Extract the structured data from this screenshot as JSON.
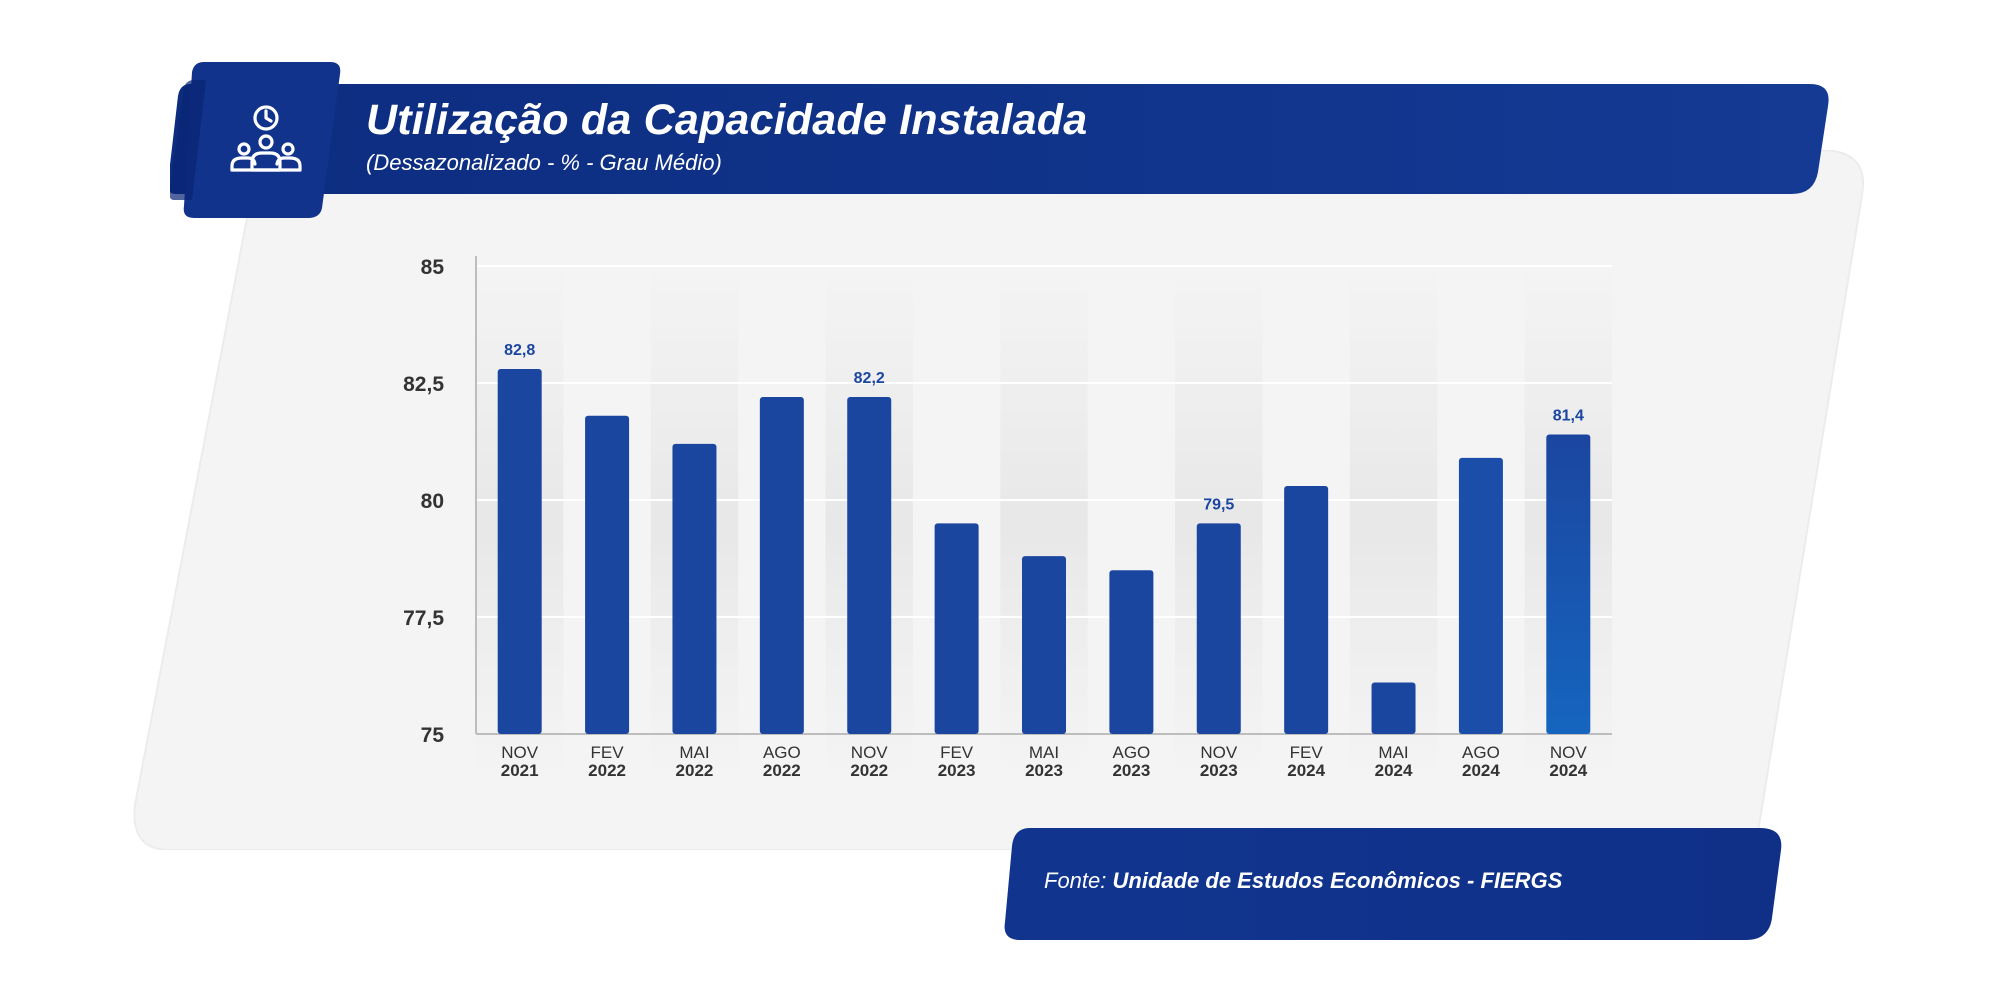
{
  "header": {
    "title": "Utilização da Capacidade Instalada",
    "subtitle": "(Dessazonalizado - % - Grau Médio)",
    "icon": "people-clock-icon"
  },
  "footer": {
    "source_prefix": "Fonte:",
    "source_name": "Unidade de Estudos Econômicos - FIERGS"
  },
  "colors": {
    "banner_dark": "#0e2d86",
    "bar": "#1b46a0",
    "bar_last": "#1565bf",
    "label": "#1b46a0",
    "axis_text": "#333333"
  },
  "chart_data": {
    "type": "bar",
    "title": "Utilização da Capacidade Instalada",
    "subtitle": "(Dessazonalizado - % - Grau Médio)",
    "xlabel": "",
    "ylabel": "",
    "ylim": [
      75,
      85
    ],
    "yticks": [
      {
        "value": 75,
        "label": "75"
      },
      {
        "value": 77.5,
        "label": "77,5"
      },
      {
        "value": 80,
        "label": "80"
      },
      {
        "value": 82.5,
        "label": "82,5"
      },
      {
        "value": 85,
        "label": "85"
      }
    ],
    "grid": true,
    "categories": [
      {
        "month": "NOV",
        "year": "2021"
      },
      {
        "month": "FEV",
        "year": "2022"
      },
      {
        "month": "MAI",
        "year": "2022"
      },
      {
        "month": "AGO",
        "year": "2022"
      },
      {
        "month": "NOV",
        "year": "2022"
      },
      {
        "month": "FEV",
        "year": "2023"
      },
      {
        "month": "MAI",
        "year": "2023"
      },
      {
        "month": "AGO",
        "year": "2023"
      },
      {
        "month": "NOV",
        "year": "2023"
      },
      {
        "month": "FEV",
        "year": "2024"
      },
      {
        "month": "MAI",
        "year": "2024"
      },
      {
        "month": "AGO",
        "year": "2024"
      },
      {
        "month": "NOV",
        "year": "2024"
      }
    ],
    "values": [
      82.8,
      81.8,
      81.2,
      82.2,
      82.2,
      79.5,
      78.8,
      78.5,
      79.5,
      80.3,
      76.1,
      80.9,
      81.4
    ],
    "data_labels": [
      {
        "index": 0,
        "text": "82,8"
      },
      {
        "index": 4,
        "text": "82,2"
      },
      {
        "index": 8,
        "text": "79,5"
      },
      {
        "index": 12,
        "text": "81,4"
      }
    ]
  }
}
